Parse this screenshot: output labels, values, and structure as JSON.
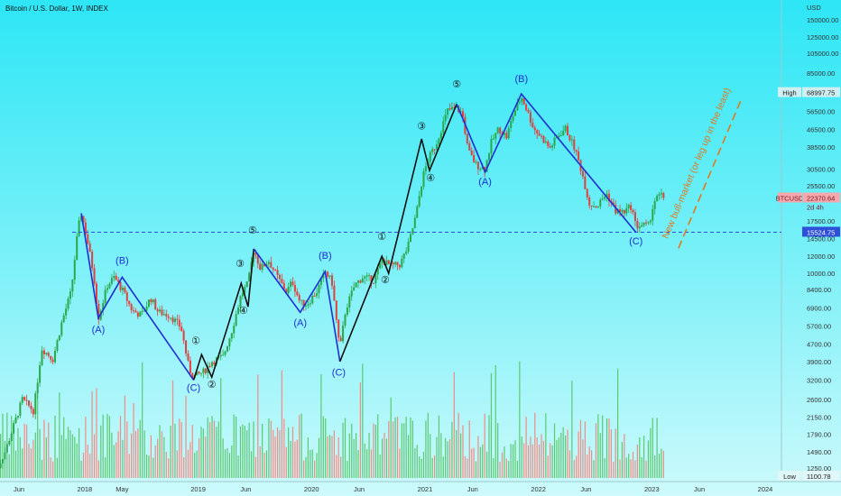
{
  "header": {
    "title": "Bitcoin / U.S. Dollar, 1W, INDEX"
  },
  "colors": {
    "bg_top": "#2de6f6",
    "up": "#2aa84a",
    "down": "#e0413f",
    "vol_up": "#5cc96f",
    "vol_down": "#f08c86",
    "wave_blue": "#1f2fd0",
    "wave_black": "#111111",
    "support": "#2f4fd9",
    "projection": "#e07a1f",
    "price_tag": "#f6a9ad"
  },
  "chart_data": {
    "type": "candlestick",
    "title": "Bitcoin / U.S. Dollar, 1W, INDEX",
    "y_axis_label": "USD",
    "y_scale": "log",
    "y_ticks": [
      150000,
      125000,
      105000,
      85000,
      68997.75,
      56500,
      46500,
      38500,
      30500,
      25500,
      22370.64,
      17500,
      14500,
      12000,
      10000,
      8400,
      6900,
      5700,
      4700,
      3900,
      3200,
      2600,
      2150,
      1790,
      1490,
      1250
    ],
    "y_tick_labels": [
      "150000.00",
      "125000.00",
      "105000.00",
      "85000.00",
      "68997.75",
      "56500.00",
      "46500.00",
      "38500.00",
      "30500.00",
      "25500.00",
      "22370.64",
      "17500.00",
      "14500.00",
      "12000.00",
      "10000.00",
      "8400.00",
      "6900.00",
      "5700.00",
      "4700.00",
      "3900.00",
      "3200.00",
      "2600.00",
      "2150.00",
      "1790.00",
      "1490.00",
      "1250.00"
    ],
    "x_ticks": [
      {
        "label": "Jun",
        "date": 2017.42
      },
      {
        "label": "2018",
        "date": 2018.0
      },
      {
        "label": "May",
        "date": 2018.33
      },
      {
        "label": "2019",
        "date": 2019.0
      },
      {
        "label": "Jun",
        "date": 2019.42
      },
      {
        "label": "2020",
        "date": 2020.0
      },
      {
        "label": "Jun",
        "date": 2020.42
      },
      {
        "label": "2021",
        "date": 2021.0
      },
      {
        "label": "Jun",
        "date": 2021.42
      },
      {
        "label": "2022",
        "date": 2022.0
      },
      {
        "label": "Jun",
        "date": 2022.42
      },
      {
        "label": "2023",
        "date": 2023.0
      },
      {
        "label": "Jun",
        "date": 2023.42
      },
      {
        "label": "2024",
        "date": 2024.0
      }
    ],
    "high": {
      "label": "High",
      "value": "68997.75"
    },
    "low": {
      "label": "Low",
      "value": "1100.78"
    },
    "current": {
      "symbol": "BTCUSD",
      "price": "22370.64",
      "countdown": "2d 4h",
      "value": 22370.64
    },
    "support_level": {
      "value": 15524.75,
      "label": "15524.75"
    },
    "price_path": [
      [
        2017.2,
        1150
      ],
      [
        2017.3,
        1500
      ],
      [
        2017.45,
        2600
      ],
      [
        2017.55,
        2300
      ],
      [
        2017.62,
        4500
      ],
      [
        2017.72,
        4000
      ],
      [
        2017.8,
        6000
      ],
      [
        2017.88,
        8200
      ],
      [
        2017.94,
        16000
      ],
      [
        2017.97,
        19000
      ],
      [
        2018.02,
        14500
      ],
      [
        2018.08,
        9800
      ],
      [
        2018.12,
        6200
      ],
      [
        2018.2,
        8800
      ],
      [
        2018.26,
        9600
      ],
      [
        2018.33,
        8400
      ],
      [
        2018.42,
        6700
      ],
      [
        2018.5,
        6400
      ],
      [
        2018.58,
        7700
      ],
      [
        2018.65,
        6600
      ],
      [
        2018.75,
        6400
      ],
      [
        2018.85,
        5600
      ],
      [
        2018.92,
        3600
      ],
      [
        2018.96,
        3300
      ],
      [
        2019.05,
        3500
      ],
      [
        2019.12,
        3900
      ],
      [
        2019.22,
        4100
      ],
      [
        2019.3,
        5500
      ],
      [
        2019.38,
        8000
      ],
      [
        2019.44,
        9000
      ],
      [
        2019.49,
        13000
      ],
      [
        2019.55,
        10500
      ],
      [
        2019.62,
        11500
      ],
      [
        2019.7,
        9600
      ],
      [
        2019.78,
        8200
      ],
      [
        2019.83,
        9200
      ],
      [
        2019.9,
        7300
      ],
      [
        2019.96,
        7200
      ],
      [
        2020.05,
        8300
      ],
      [
        2020.12,
        10200
      ],
      [
        2020.18,
        9100
      ],
      [
        2020.22,
        6000
      ],
      [
        2020.25,
        4400
      ],
      [
        2020.3,
        6800
      ],
      [
        2020.38,
        8800
      ],
      [
        2020.45,
        9600
      ],
      [
        2020.55,
        9300
      ],
      [
        2020.62,
        11500
      ],
      [
        2020.7,
        10800
      ],
      [
        2020.78,
        11000
      ],
      [
        2020.85,
        13300
      ],
      [
        2020.92,
        18500
      ],
      [
        2020.98,
        28000
      ],
      [
        2021.03,
        34000
      ],
      [
        2021.1,
        40000
      ],
      [
        2021.15,
        48000
      ],
      [
        2021.2,
        57000
      ],
      [
        2021.28,
        58500
      ],
      [
        2021.33,
        55000
      ],
      [
        2021.38,
        37000
      ],
      [
        2021.45,
        32000
      ],
      [
        2021.53,
        30500
      ],
      [
        2021.58,
        40000
      ],
      [
        2021.65,
        47000
      ],
      [
        2021.72,
        43000
      ],
      [
        2021.78,
        55000
      ],
      [
        2021.85,
        66000
      ],
      [
        2021.9,
        57000
      ],
      [
        2021.96,
        47000
      ],
      [
        2022.04,
        42000
      ],
      [
        2022.1,
        38000
      ],
      [
        2022.18,
        44000
      ],
      [
        2022.24,
        47000
      ],
      [
        2022.32,
        38000
      ],
      [
        2022.38,
        30000
      ],
      [
        2022.45,
        21000
      ],
      [
        2022.52,
        20500
      ],
      [
        2022.6,
        23500
      ],
      [
        2022.68,
        19500
      ],
      [
        2022.75,
        19200
      ],
      [
        2022.82,
        20500
      ],
      [
        2022.86,
        16500
      ],
      [
        2022.92,
        16800
      ],
      [
        2022.97,
        16600
      ],
      [
        2023.02,
        21500
      ],
      [
        2023.07,
        23000
      ],
      [
        2023.12,
        22370
      ]
    ],
    "wave_lines": [
      {
        "color": "blue",
        "points": [
          [
            2017.97,
            19000
          ],
          [
            2018.12,
            6200
          ],
          [
            2018.33,
            9600
          ],
          [
            2018.96,
            3200
          ]
        ]
      },
      {
        "color": "black",
        "points": [
          [
            2018.96,
            3200
          ],
          [
            2019.03,
            4200
          ],
          [
            2019.12,
            3300
          ],
          [
            2019.38,
            9000
          ],
          [
            2019.44,
            7000
          ],
          [
            2019.49,
            13000
          ]
        ]
      },
      {
        "color": "blue",
        "points": [
          [
            2019.49,
            13000
          ],
          [
            2019.9,
            6600
          ],
          [
            2020.12,
            10200
          ],
          [
            2020.25,
            3900
          ]
        ]
      },
      {
        "color": "black",
        "points": [
          [
            2020.25,
            3900
          ],
          [
            2020.62,
            12000
          ],
          [
            2020.68,
            10000
          ],
          [
            2020.97,
            42000
          ],
          [
            2021.04,
            30000
          ],
          [
            2021.28,
            61000
          ]
        ]
      },
      {
        "color": "blue",
        "points": [
          [
            2021.28,
            61000
          ],
          [
            2021.53,
            29500
          ],
          [
            2021.85,
            68000
          ],
          [
            2022.86,
            15524
          ]
        ]
      }
    ],
    "wave_labels": [
      {
        "text": "(A)",
        "color": "blue",
        "x": 2018.12,
        "y": 5300
      },
      {
        "text": "(B)",
        "color": "blue",
        "x": 2018.33,
        "y": 11100
      },
      {
        "text": "(C)",
        "color": "blue",
        "x": 2018.96,
        "y": 2850
      },
      {
        "text": "①",
        "color": "black",
        "x": 2018.98,
        "y": 4700
      },
      {
        "text": "②",
        "color": "black",
        "x": 2019.12,
        "y": 2950
      },
      {
        "text": "③",
        "color": "black",
        "x": 2019.37,
        "y": 10700
      },
      {
        "text": "④",
        "color": "black",
        "x": 2019.4,
        "y": 6500
      },
      {
        "text": "⑤",
        "color": "black",
        "x": 2019.48,
        "y": 15300
      },
      {
        "text": "(A)",
        "color": "blue",
        "x": 2019.9,
        "y": 5700
      },
      {
        "text": "(B)",
        "color": "blue",
        "x": 2020.12,
        "y": 11700
      },
      {
        "text": "(C)",
        "color": "blue",
        "x": 2020.24,
        "y": 3350
      },
      {
        "text": "①",
        "color": "black",
        "x": 2020.62,
        "y": 14300
      },
      {
        "text": "②",
        "color": "black",
        "x": 2020.65,
        "y": 9000
      },
      {
        "text": "③",
        "color": "black",
        "x": 2020.97,
        "y": 46500
      },
      {
        "text": "④",
        "color": "black",
        "x": 2021.05,
        "y": 26800
      },
      {
        "text": "⑤",
        "color": "black",
        "x": 2021.28,
        "y": 73000
      },
      {
        "text": "(A)",
        "color": "blue",
        "x": 2021.53,
        "y": 25700
      },
      {
        "text": "(B)",
        "color": "blue",
        "x": 2021.85,
        "y": 77000
      },
      {
        "text": "(C)",
        "color": "blue",
        "x": 2022.86,
        "y": 13600
      }
    ],
    "projection": {
      "from": [
        2023.14,
        14400
      ],
      "to": [
        2023.7,
        72000
      ],
      "text": "New bull-market (or leg up in the least)"
    }
  }
}
